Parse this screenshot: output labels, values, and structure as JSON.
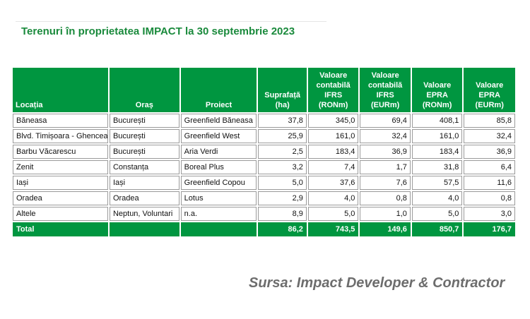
{
  "title": "Terenuri în proprietatea IMPACT la 30 septembrie 2023",
  "headers": {
    "locatia": "Locația",
    "oras": "Oraș",
    "proiect": "Proiect",
    "suprafata": "Suprafață\n(ha)",
    "val_ifrs_ron": "Valoare\ncontabilă\nIFRS\n(RONm)",
    "val_ifrs_eur": "Valoare\ncontabilă\nIFRS\n(EURm)",
    "epra_ron": "Valoare\nEPRA\n(RONm)",
    "epra_eur": "Valoare\nEPRA\n(EURm)"
  },
  "rows": [
    {
      "locatia": "Băneasa",
      "oras": "București",
      "proiect": "Greenfield Băneasa",
      "suprafata": "37,8",
      "ifrs_ron": "345,0",
      "ifrs_eur": "69,4",
      "epra_ron": "408,1",
      "epra_eur": "85,8"
    },
    {
      "locatia": "Blvd. Timișoara - Ghencea",
      "oras": "București",
      "proiect": "Greenfield West",
      "suprafata": "25,9",
      "ifrs_ron": "161,0",
      "ifrs_eur": "32,4",
      "epra_ron": "161,0",
      "epra_eur": "32,4"
    },
    {
      "locatia": "Barbu Văcarescu",
      "oras": "București",
      "proiect": "Aria Verdi",
      "suprafata": "2,5",
      "ifrs_ron": "183,4",
      "ifrs_eur": "36,9",
      "epra_ron": "183,4",
      "epra_eur": "36,9"
    },
    {
      "locatia": "Zenit",
      "oras": "Constanța",
      "proiect": "Boreal Plus",
      "suprafata": "3,2",
      "ifrs_ron": "7,4",
      "ifrs_eur": "1,7",
      "epra_ron": "31,8",
      "epra_eur": "6,4"
    },
    {
      "locatia": "Iași",
      "oras": "Iași",
      "proiect": "Greenfield Copou",
      "suprafata": "5,0",
      "ifrs_ron": "37,6",
      "ifrs_eur": "7,6",
      "epra_ron": "57,5",
      "epra_eur": "11,6"
    },
    {
      "locatia": "Oradea",
      "oras": "Oradea",
      "proiect": "Lotus",
      "suprafata": "2,9",
      "ifrs_ron": "4,0",
      "ifrs_eur": "0,8",
      "epra_ron": "4,0",
      "epra_eur": "0,8"
    },
    {
      "locatia": "Altele",
      "oras": "Neptun, Voluntari",
      "proiect": "n.a.",
      "suprafata": "8,9",
      "ifrs_ron": "5,0",
      "ifrs_eur": "1,0",
      "epra_ron": "5,0",
      "epra_eur": "3,0"
    }
  ],
  "total": {
    "label": "Total",
    "suprafata": "86,2",
    "ifrs_ron": "743,5",
    "ifrs_eur": "149,6",
    "epra_ron": "850,7",
    "epra_eur": "176,7"
  },
  "source": "Sursa: Impact Developer & Contractor",
  "colors": {
    "accent": "#009640",
    "title": "#1a8a3c",
    "source": "#6d6d6d"
  }
}
